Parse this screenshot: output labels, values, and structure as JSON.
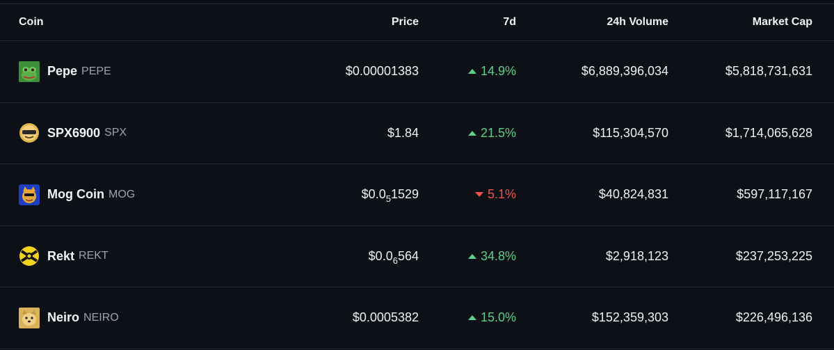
{
  "table": {
    "headers": {
      "coin": "Coin",
      "price": "Price",
      "change_7d": "7d",
      "volume_24h": "24h Volume",
      "market_cap": "Market Cap"
    },
    "rows": [
      {
        "name": "Pepe",
        "symbol": "PEPE",
        "icon": "pepe-frog-icon",
        "price_prefix": "$0.00001383",
        "price_sub": "",
        "price_suffix": "",
        "change": "14.9%",
        "direction": "up",
        "volume": "$6,889,396,034",
        "market_cap": "$5,818,731,631"
      },
      {
        "name": "SPX6900",
        "symbol": "SPX",
        "icon": "spx6900-icon",
        "price_prefix": "$1.84",
        "price_sub": "",
        "price_suffix": "",
        "change": "21.5%",
        "direction": "up",
        "volume": "$115,304,570",
        "market_cap": "$1,714,065,628"
      },
      {
        "name": "Mog Coin",
        "symbol": "MOG",
        "icon": "mog-cat-icon",
        "price_prefix": "$0.0",
        "price_sub": "5",
        "price_suffix": "1529",
        "change": "5.1%",
        "direction": "down",
        "volume": "$40,824,831",
        "market_cap": "$597,117,167"
      },
      {
        "name": "Rekt",
        "symbol": "REKT",
        "icon": "rekt-icon",
        "price_prefix": "$0.0",
        "price_sub": "6",
        "price_suffix": "564",
        "change": "34.8%",
        "direction": "up",
        "volume": "$2,918,123",
        "market_cap": "$237,253,225"
      },
      {
        "name": "Neiro",
        "symbol": "NEIRO",
        "icon": "neiro-dog-icon",
        "price_prefix": "$0.0005382",
        "price_sub": "",
        "price_suffix": "",
        "change": "15.0%",
        "direction": "up",
        "volume": "$152,359,303",
        "market_cap": "$226,496,136"
      }
    ]
  },
  "colors": {
    "background": "#0d1117",
    "positive": "#5bd08a",
    "negative": "#ef5350",
    "muted": "#9aa3af"
  }
}
